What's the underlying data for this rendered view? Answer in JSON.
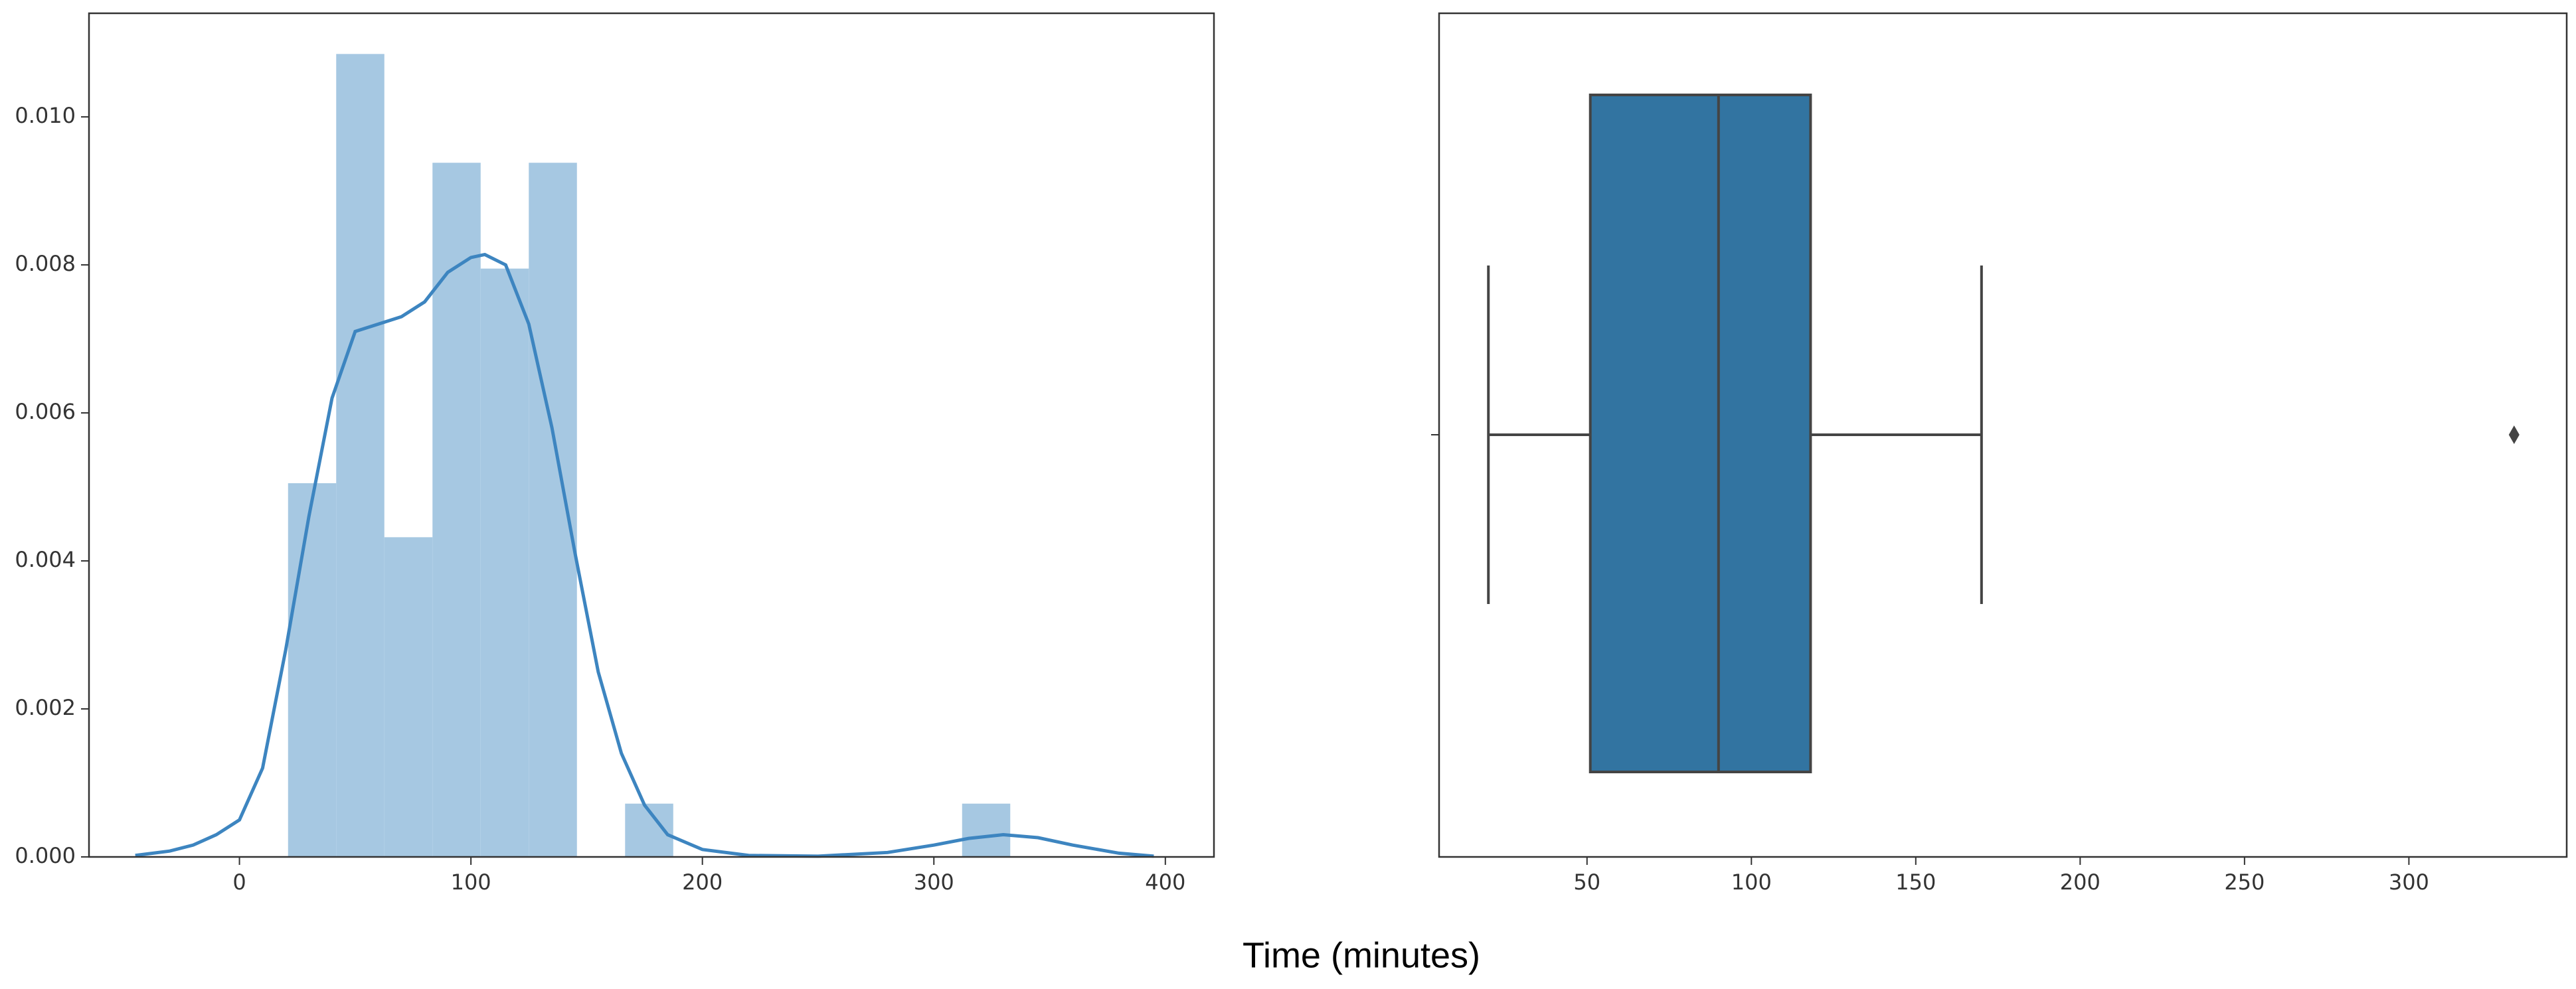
{
  "figure": {
    "xlabel": "Time (minutes)"
  },
  "chart_data": [
    {
      "type": "histogram",
      "bins": [
        21,
        41.8,
        62.6,
        83.4,
        104.2,
        125,
        145.8,
        166.6,
        187.4,
        208.2,
        229,
        249.8,
        270.6,
        291.4,
        312.2,
        333
      ],
      "values": [
        0.00505,
        0.01085,
        0.00432,
        0.00938,
        0.00795,
        0.00938,
        0,
        0.00072,
        0,
        0,
        0,
        0,
        0,
        0,
        0.00072
      ],
      "color": "#a6c8e2",
      "series": [
        {
          "color": "#3d85c0",
          "x": [
            -45,
            -30,
            -20,
            -10,
            0,
            10,
            20,
            30,
            40,
            50,
            60,
            70,
            80,
            90,
            100,
            106,
            115,
            125,
            135,
            145,
            155,
            165,
            175,
            185,
            200,
            220,
            250,
            280,
            300,
            315,
            330,
            345,
            360,
            380,
            395
          ],
          "values": [
            2e-05,
            8e-05,
            0.00016,
            0.0003,
            0.0005,
            0.0012,
            0.0028,
            0.0046,
            0.0062,
            0.0071,
            0.0072,
            0.0073,
            0.0075,
            0.0079,
            0.0081,
            0.00814,
            0.008,
            0.0072,
            0.0058,
            0.0041,
            0.0025,
            0.0014,
            0.0007,
            0.0003,
            0.0001,
            2e-05,
            1e-05,
            6e-05,
            0.00016,
            0.00025,
            0.0003,
            0.00026,
            0.00016,
            5e-05,
            1e-05
          ]
        }
      ],
      "xlim": [
        -65,
        421
      ],
      "ylim": [
        0,
        0.0114
      ],
      "xticks": [
        0,
        100,
        200,
        300,
        400
      ],
      "yticks": [
        {
          "value": 0,
          "label": "0.000"
        },
        {
          "value": 0.002,
          "label": "0.002"
        },
        {
          "value": 0.004,
          "label": "0.004"
        },
        {
          "value": 0.006,
          "label": "0.006"
        },
        {
          "value": 0.008,
          "label": "0.008"
        },
        {
          "value": 0.01,
          "label": "0.010"
        }
      ]
    },
    {
      "type": "box",
      "color": "#3274a1",
      "min": 20,
      "q1": 51,
      "median": 90,
      "q3": 118,
      "max": 170,
      "outliers": [
        332
      ],
      "xlim": [
        5,
        348
      ],
      "xticks": [
        50,
        100,
        150,
        200,
        250,
        300
      ]
    }
  ]
}
